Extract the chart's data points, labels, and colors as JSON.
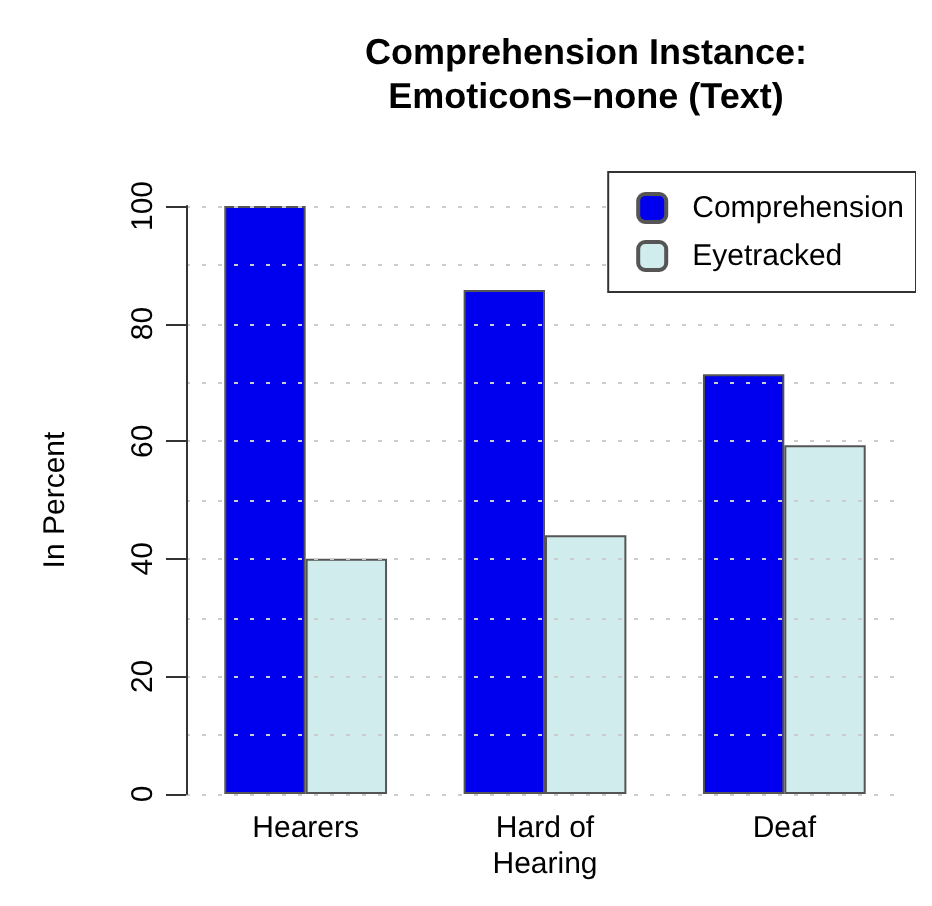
{
  "chart_data": {
    "type": "bar",
    "title": "Comprehension Instance:\nEmoticons–none (Text)",
    "ylabel": "In Percent",
    "categories": [
      "Hearers",
      "Hard of\nHearing",
      "Deaf"
    ],
    "series": [
      {
        "name": "Comprehension",
        "color": "#0000ee",
        "values": [
          100,
          85.7,
          71.4
        ]
      },
      {
        "name": "Eyetracked",
        "color": "#d1ecec",
        "values": [
          40,
          44,
          59.3
        ]
      }
    ],
    "ylim": [
      0,
      100
    ],
    "yticks": [
      0,
      20,
      40,
      60,
      80,
      100
    ],
    "grid": "y",
    "legend": "top right"
  }
}
